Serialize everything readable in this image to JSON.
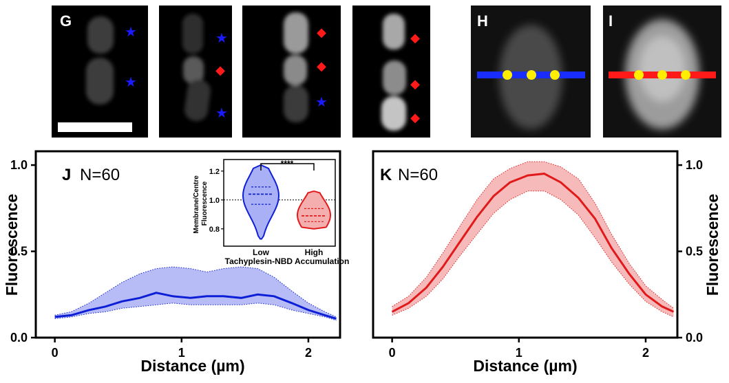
{
  "micrographs": [
    {
      "panel_label": "G",
      "markers": [
        "star",
        "star"
      ],
      "has_scale_bar": true
    },
    {
      "panel_label": "",
      "markers": [
        "star",
        "diamond",
        "star"
      ],
      "has_scale_bar": false
    },
    {
      "panel_label": "",
      "markers": [
        "diamond",
        "diamond",
        "star"
      ],
      "has_scale_bar": false
    },
    {
      "panel_label": "",
      "markers": [
        "diamond",
        "diamond",
        "diamond"
      ],
      "has_scale_bar": false
    },
    {
      "panel_label": "H",
      "line_color": "#1a2dff",
      "markers": [],
      "has_scale_bar": false
    },
    {
      "panel_label": "I",
      "line_color": "#ff1a1a",
      "markers": [],
      "has_scale_bar": false
    }
  ],
  "colors": {
    "star": "#1a1aff",
    "diamond": "#ff1a1a",
    "point": "#ffee00",
    "low_line": "#0d1fd6",
    "low_fill": "#aab0f5",
    "high_line": "#e01a1a",
    "high_fill": "#f5aeae"
  },
  "chart_data": [
    {
      "type": "line",
      "panel_label": "J",
      "annotation": "N=60",
      "xlabel": "Distance (µm)",
      "ylabel": "Fluorescence",
      "xlim": [
        -0.15,
        2.25
      ],
      "ylim": [
        0,
        1.08
      ],
      "x_ticks": [
        "0",
        "1",
        "2"
      ],
      "y_ticks": [
        "0.0",
        "0.5",
        "1.0"
      ],
      "series": [
        {
          "x": [
            0,
            0.13,
            0.27,
            0.4,
            0.53,
            0.67,
            0.8,
            0.93,
            1.07,
            1.2,
            1.33,
            1.47,
            1.6,
            1.73,
            1.87,
            2.0,
            2.13,
            2.22
          ],
          "mean": [
            0.12,
            0.13,
            0.16,
            0.18,
            0.21,
            0.23,
            0.26,
            0.24,
            0.23,
            0.24,
            0.24,
            0.23,
            0.25,
            0.24,
            0.2,
            0.16,
            0.13,
            0.11
          ],
          "upper": [
            0.13,
            0.15,
            0.2,
            0.26,
            0.32,
            0.37,
            0.4,
            0.41,
            0.4,
            0.38,
            0.4,
            0.41,
            0.4,
            0.35,
            0.27,
            0.2,
            0.15,
            0.12
          ],
          "lower": [
            0.11,
            0.12,
            0.14,
            0.15,
            0.17,
            0.18,
            0.19,
            0.2,
            0.19,
            0.19,
            0.19,
            0.19,
            0.2,
            0.19,
            0.16,
            0.14,
            0.12,
            0.1
          ]
        }
      ]
    },
    {
      "type": "line",
      "panel_label": "K",
      "annotation": "N=60",
      "xlabel": "Distance (µm)",
      "ylabel": "Fluorescence",
      "xlim": [
        -0.15,
        2.25
      ],
      "ylim": [
        0,
        1.08
      ],
      "x_ticks": [
        "0",
        "1",
        "2"
      ],
      "y_ticks": [
        "0.0",
        "0.5",
        "1.0"
      ],
      "series": [
        {
          "x": [
            0,
            0.13,
            0.27,
            0.4,
            0.53,
            0.67,
            0.8,
            0.93,
            1.07,
            1.2,
            1.33,
            1.47,
            1.6,
            1.73,
            1.87,
            2.0,
            2.13,
            2.22
          ],
          "mean": [
            0.15,
            0.2,
            0.29,
            0.41,
            0.55,
            0.7,
            0.82,
            0.9,
            0.94,
            0.95,
            0.9,
            0.81,
            0.69,
            0.52,
            0.37,
            0.25,
            0.18,
            0.15
          ],
          "upper": [
            0.18,
            0.24,
            0.35,
            0.49,
            0.64,
            0.8,
            0.92,
            0.98,
            1.02,
            1.02,
            0.99,
            0.92,
            0.78,
            0.6,
            0.43,
            0.3,
            0.22,
            0.17
          ],
          "lower": [
            0.13,
            0.17,
            0.24,
            0.34,
            0.47,
            0.6,
            0.72,
            0.8,
            0.85,
            0.85,
            0.8,
            0.71,
            0.58,
            0.44,
            0.31,
            0.21,
            0.15,
            0.12
          ]
        }
      ]
    },
    {
      "type": "violin",
      "ylabel": "Membrane/Centre Fluorescence",
      "ylim": [
        0.68,
        1.28
      ],
      "y_ticks": [
        "0.8",
        "1.0",
        "1.2"
      ],
      "categories": [
        "Low",
        "High"
      ],
      "xlabel_line": "Tachyplesin-NBD Accumulation",
      "significance": "****",
      "reference_line": 1.0,
      "series": [
        {
          "name": "Low",
          "median": 1.04,
          "q1": 0.97,
          "q3": 1.09,
          "min": 0.73,
          "max": 1.24
        },
        {
          "name": "High",
          "median": 0.89,
          "q1": 0.85,
          "q3": 0.94,
          "min": 0.8,
          "max": 1.06
        }
      ]
    }
  ]
}
